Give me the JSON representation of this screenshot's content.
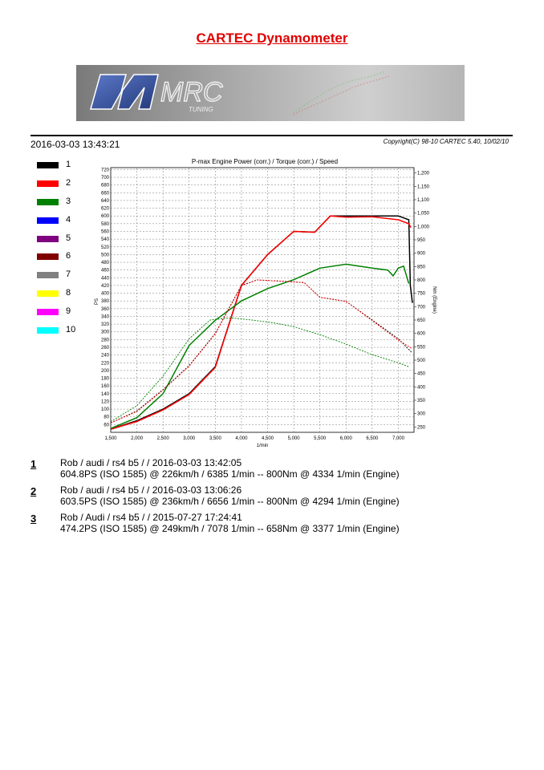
{
  "page": {
    "title": "CARTEC Dynamometer",
    "date": "2016-03-03 13:43:21",
    "copyright": "Copyright(C) 98-10 CARTEC 5.40, 10/02/10"
  },
  "banner": {
    "logo_text": "MRC",
    "logo_subtext": "TUNING"
  },
  "legend": [
    {
      "num": "1",
      "color": "#000000"
    },
    {
      "num": "2",
      "color": "#ff0000"
    },
    {
      "num": "3",
      "color": "#008000"
    },
    {
      "num": "4",
      "color": "#0000ff"
    },
    {
      "num": "5",
      "color": "#800080"
    },
    {
      "num": "6",
      "color": "#800000"
    },
    {
      "num": "7",
      "color": "#808080"
    },
    {
      "num": "8",
      "color": "#ffff00"
    },
    {
      "num": "9",
      "color": "#ff00ff"
    },
    {
      "num": "10",
      "color": "#00ffff"
    }
  ],
  "runs": [
    {
      "num": "1",
      "line1": "Rob / audi / rs4 b5 /  / 2016-03-03 13:42:05",
      "line2": "604.8PS (ISO 1585) @ 226km/h / 6385 1/min -- 800Nm @ 4334 1/min (Engine)"
    },
    {
      "num": "2",
      "line1": "Rob / audi / rs4 b5 /  / 2016-03-03 13:06:26",
      "line2": "603.5PS (ISO 1585) @ 236km/h / 6656 1/min -- 800Nm @ 4294 1/min (Engine)"
    },
    {
      "num": "3",
      "line1": "Rob / Audi / rs4 b5 /  / 2015-07-27 17:24:41",
      "line2": "474.2PS (ISO 1585) @ 249km/h / 7078 1/min -- 658Nm @ 3377 1/min (Engine)"
    }
  ],
  "chart_data": {
    "type": "line",
    "title": "P-max Engine Power (corr.) / Torque (corr.) / Speed",
    "xlabel": "1/min",
    "ylabel_left": "PS",
    "ylabel_right": "Nm (Engine)",
    "xlim": [
      1500,
      7300
    ],
    "ylim_left": [
      40,
      725
    ],
    "ylim_right": [
      230,
      1220
    ],
    "xticks": [
      1500,
      2000,
      2500,
      3000,
      3500,
      4000,
      4500,
      5000,
      5500,
      6000,
      6500,
      7000
    ],
    "xtick_labels": [
      "1,500",
      "2,000",
      "2,500",
      "3,000",
      "3,500",
      "4,000",
      "4,500",
      "5,000",
      "5,500",
      "6,000",
      "6,500",
      "7,000"
    ],
    "yticks_left": [
      60,
      80,
      100,
      120,
      140,
      160,
      180,
      200,
      220,
      240,
      260,
      280,
      300,
      320,
      340,
      360,
      380,
      400,
      420,
      440,
      460,
      480,
      500,
      520,
      540,
      560,
      580,
      600,
      620,
      640,
      660,
      680,
      700,
      720
    ],
    "yticks_right": [
      250,
      300,
      350,
      400,
      450,
      500,
      550,
      600,
      650,
      700,
      750,
      800,
      850,
      900,
      950,
      1000,
      1050,
      1100,
      1150,
      1200
    ],
    "ytick_labels_right": [
      "250",
      "300",
      "350",
      "400",
      "450",
      "500",
      "550",
      "600",
      "650",
      "700",
      "750",
      "800",
      "850",
      "900",
      "950",
      "1,000",
      "1,050",
      "1,100",
      "1,150",
      "1,200"
    ],
    "grid": true,
    "series": [
      {
        "name": "1",
        "color": "#000000",
        "kind": "power",
        "axis": "left",
        "x": [
          1500,
          2000,
          2500,
          3000,
          3500,
          4000,
          4500,
          5000,
          5400,
          5700,
          6000,
          6500,
          7000,
          7200,
          7230,
          7270
        ],
        "y": [
          48,
          70,
          100,
          140,
          210,
          420,
          500,
          560,
          558,
          600,
          600,
          600,
          600,
          590,
          420,
          375
        ]
      },
      {
        "name": "2",
        "color": "#ff0000",
        "kind": "power",
        "axis": "left",
        "x": [
          1500,
          2000,
          2500,
          3000,
          3500,
          4000,
          4500,
          5000,
          5400,
          5700,
          6000,
          6500,
          7000,
          7200,
          7240
        ],
        "y": [
          48,
          68,
          98,
          138,
          208,
          420,
          500,
          560,
          558,
          600,
          597,
          598,
          590,
          580,
          570
        ]
      },
      {
        "name": "3",
        "color": "#008000",
        "kind": "power",
        "axis": "left",
        "x": [
          1500,
          2000,
          2500,
          3000,
          3500,
          4000,
          4500,
          5000,
          5500,
          6000,
          6500,
          6800,
          6900,
          7000,
          7100,
          7200
        ],
        "y": [
          50,
          78,
          140,
          265,
          330,
          380,
          412,
          435,
          465,
          475,
          465,
          460,
          445,
          465,
          470,
          425
        ]
      },
      {
        "name": "1",
        "color": "#000000",
        "kind": "torque",
        "axis": "right",
        "x": [
          1500,
          2000,
          2500,
          3000,
          3500,
          4000,
          4300,
          4800,
          5200,
          5500,
          6000,
          6500,
          7000,
          7250
        ],
        "y": [
          265,
          310,
          390,
          480,
          600,
          780,
          800,
          795,
          790,
          735,
          720,
          650,
          580,
          530
        ]
      },
      {
        "name": "2",
        "color": "#ff0000",
        "kind": "torque",
        "axis": "right",
        "x": [
          1500,
          2000,
          2500,
          3000,
          3500,
          4000,
          4300,
          4800,
          5200,
          5500,
          6000,
          6500,
          7000,
          7250
        ],
        "y": [
          265,
          308,
          388,
          478,
          598,
          778,
          800,
          795,
          790,
          735,
          720,
          648,
          575,
          545
        ]
      },
      {
        "name": "3",
        "color": "#008000",
        "kind": "torque",
        "axis": "right",
        "x": [
          1500,
          2000,
          2500,
          3000,
          3400,
          3800,
          4200,
          4600,
          5000,
          5500,
          6000,
          6500,
          7000,
          7200
        ],
        "y": [
          270,
          330,
          440,
          580,
          650,
          658,
          650,
          640,
          625,
          595,
          560,
          520,
          490,
          475
        ]
      }
    ]
  }
}
